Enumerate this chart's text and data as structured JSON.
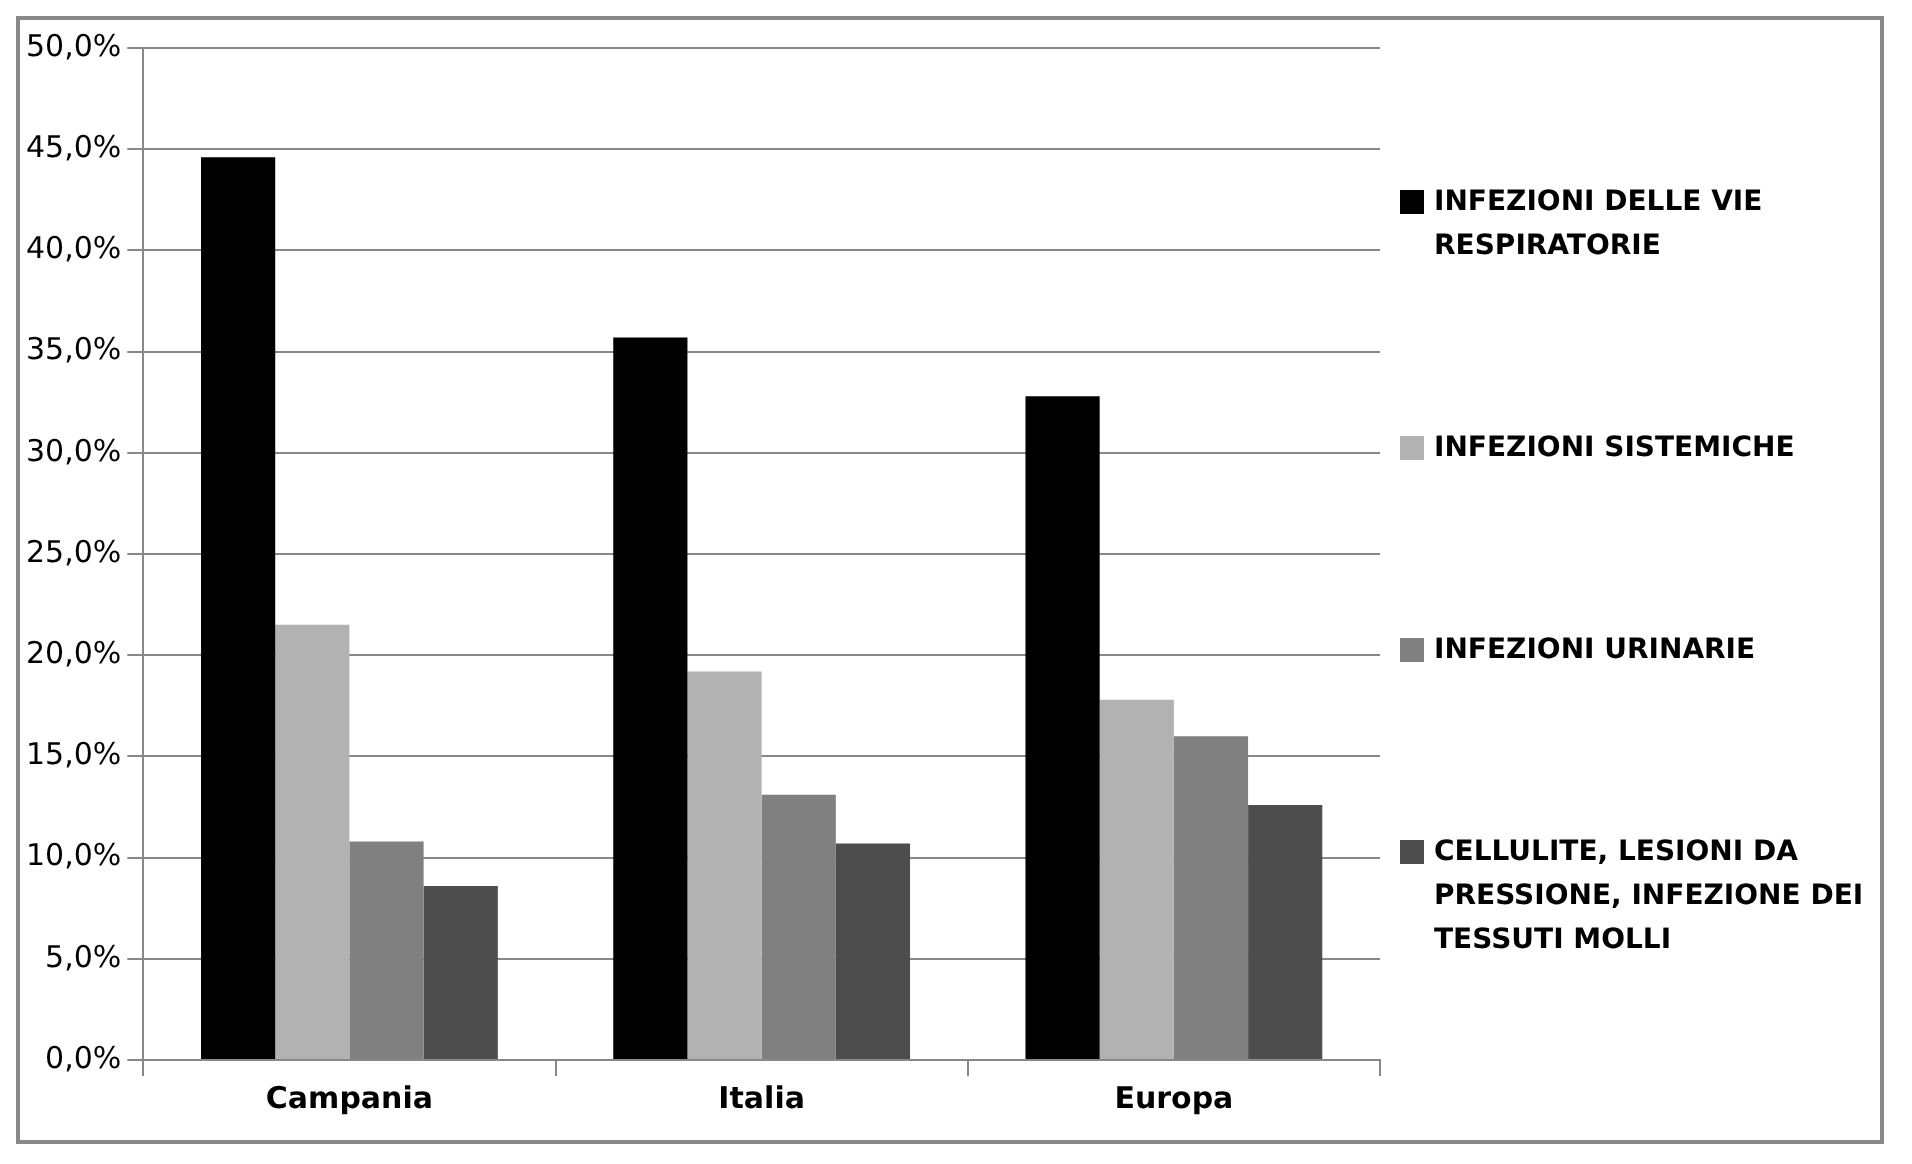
{
  "chart_data": {
    "type": "bar",
    "categories": [
      "Campania",
      "Italia",
      "Europa"
    ],
    "series": [
      {
        "name": "INFEZIONI DELLE VIE RESPIRATORIE",
        "color": "#000000",
        "values": [
          44.6,
          35.7,
          32.8
        ]
      },
      {
        "name": "INFEZIONI SISTEMICHE",
        "color": "#b2b2b2",
        "values": [
          21.5,
          19.2,
          17.8
        ]
      },
      {
        "name": "INFEZIONI URINARIE",
        "color": "#808080",
        "values": [
          10.8,
          13.1,
          16.0
        ]
      },
      {
        "name": "CELLULITE, LESIONI DA PRESSIONE, INFEZIONE DEI TESSUTI MOLLI",
        "color": "#4d4d4d",
        "values": [
          8.6,
          10.7,
          12.6
        ]
      }
    ],
    "ylim": [
      0,
      50
    ],
    "yticks": [
      {
        "value": 0,
        "label": "0,0%"
      },
      {
        "value": 5,
        "label": "5,0%"
      },
      {
        "value": 10,
        "label": "10,0%"
      },
      {
        "value": 15,
        "label": "15,0%"
      },
      {
        "value": 20,
        "label": "20,0%"
      },
      {
        "value": 25,
        "label": "25,0%"
      },
      {
        "value": 30,
        "label": "30,0%"
      },
      {
        "value": 35,
        "label": "35,0%"
      },
      {
        "value": 40,
        "label": "40,0%"
      },
      {
        "value": 45,
        "label": "45,0%"
      },
      {
        "value": 50,
        "label": "50,0%"
      }
    ],
    "grid": "y",
    "legend": "right"
  }
}
